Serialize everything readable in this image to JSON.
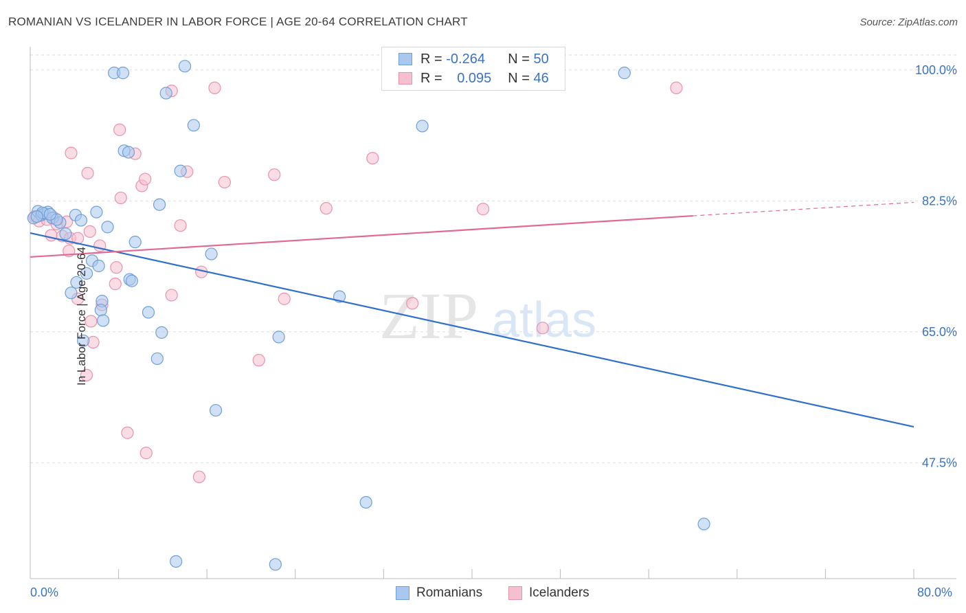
{
  "header": {
    "title": "ROMANIAN VS ICELANDER IN LABOR FORCE | AGE 20-64 CORRELATION CHART",
    "source": "Source: ZipAtlas.com"
  },
  "watermark": {
    "zip": "ZIP",
    "atlas": "atlas"
  },
  "legend": {
    "romanians": {
      "r_label": "R =",
      "r_value": "-0.264",
      "n_label": "N =",
      "n_value": "50"
    },
    "icelanders": {
      "r_label": "R =",
      "r_value": "0.095",
      "n_label": "N =",
      "n_value": "46"
    }
  },
  "bottom_legend": {
    "romanians": "Romanians",
    "icelanders": "Icelanders"
  },
  "colors": {
    "blue_fill": "#a9c8ef",
    "blue_stroke": "#6f9fd8",
    "blue_line": "#2e6fce",
    "pink_fill": "#f6bfd0",
    "pink_stroke": "#ea92ad",
    "pink_line": "#e16a91",
    "axis_text": "#3a73c4",
    "grid": "#dddddd"
  },
  "chart_data": {
    "type": "scatter",
    "title": "ROMANIAN VS ICELANDER IN LABOR FORCE | AGE 20-64 CORRELATION CHART",
    "xlabel": "",
    "ylabel": "In Labor Force | Age 20-64",
    "xlim": [
      0,
      80
    ],
    "ylim": [
      32,
      102
    ],
    "x_tick_labels": [
      "0.0%",
      "80.0%"
    ],
    "y_ticks": [
      47.5,
      65.0,
      82.5,
      100.0
    ],
    "y_tick_labels": [
      "47.5%",
      "65.0%",
      "82.5%",
      "100.0%"
    ],
    "series": [
      {
        "name": "Romanians",
        "color": "#a9c8ef",
        "r": -0.264,
        "n": 50,
        "trend": {
          "x": [
            0,
            80
          ],
          "y": [
            78.2,
            52.3
          ]
        },
        "points": [
          [
            0.3,
            80.2
          ],
          [
            0.7,
            81.1
          ],
          [
            1.0,
            80.6
          ],
          [
            1.3,
            80.8
          ],
          [
            1.6,
            81.0
          ],
          [
            2.0,
            80.2
          ],
          [
            2.7,
            79.6
          ],
          [
            3.2,
            78.1
          ],
          [
            4.1,
            80.6
          ],
          [
            4.6,
            79.9
          ],
          [
            6.0,
            81.0
          ],
          [
            5.6,
            74.5
          ],
          [
            6.2,
            73.8
          ],
          [
            5.1,
            72.8
          ],
          [
            4.2,
            71.6
          ],
          [
            3.7,
            70.2
          ],
          [
            6.5,
            69.1
          ],
          [
            6.4,
            67.9
          ],
          [
            6.6,
            66.5
          ],
          [
            7.0,
            79.0
          ],
          [
            9.5,
            77.0
          ],
          [
            9.0,
            72.0
          ],
          [
            9.2,
            71.8
          ],
          [
            10.7,
            67.6
          ],
          [
            11.9,
            64.9
          ],
          [
            11.5,
            61.4
          ],
          [
            4.8,
            63.8
          ],
          [
            7.6,
            99.6
          ],
          [
            8.4,
            99.6
          ],
          [
            12.3,
            96.9
          ],
          [
            14.8,
            92.6
          ],
          [
            13.6,
            86.5
          ],
          [
            8.5,
            89.2
          ],
          [
            8.9,
            89.0
          ],
          [
            11.7,
            82.0
          ],
          [
            16.4,
            75.4
          ],
          [
            16.8,
            54.5
          ],
          [
            22.5,
            64.3
          ],
          [
            28.0,
            69.7
          ],
          [
            35.5,
            92.5
          ],
          [
            30.4,
            42.2
          ],
          [
            53.8,
            99.6
          ],
          [
            13.2,
            34.3
          ],
          [
            22.2,
            33.9
          ],
          [
            61.0,
            39.3
          ],
          [
            14.0,
            100.5
          ],
          [
            2.4,
            80.0
          ],
          [
            1.1,
            80.9
          ],
          [
            0.6,
            80.4
          ],
          [
            1.8,
            80.7
          ]
        ]
      },
      {
        "name": "Icelanders",
        "color": "#f6bfd0",
        "r": 0.095,
        "n": 46,
        "trend": {
          "x": [
            0,
            60
          ],
          "y": [
            75.0,
            80.5
          ],
          "dashed_to": {
            "x": 80,
            "y": 82.3
          }
        },
        "points": [
          [
            0.4,
            80.4
          ],
          [
            0.8,
            79.8
          ],
          [
            1.5,
            80.0
          ],
          [
            1.9,
            77.9
          ],
          [
            2.4,
            79.4
          ],
          [
            2.9,
            77.8
          ],
          [
            3.3,
            79.7
          ],
          [
            3.6,
            77.5
          ],
          [
            4.3,
            77.5
          ],
          [
            3.5,
            75.8
          ],
          [
            4.3,
            69.4
          ],
          [
            5.4,
            78.4
          ],
          [
            6.5,
            68.6
          ],
          [
            5.5,
            66.4
          ],
          [
            5.7,
            63.6
          ],
          [
            5.1,
            59.2
          ],
          [
            6.3,
            76.5
          ],
          [
            7.8,
            73.6
          ],
          [
            7.7,
            71.4
          ],
          [
            8.2,
            82.9
          ],
          [
            8.1,
            92.0
          ],
          [
            9.5,
            88.8
          ],
          [
            10.1,
            84.5
          ],
          [
            10.4,
            85.4
          ],
          [
            5.2,
            86.2
          ],
          [
            3.7,
            88.9
          ],
          [
            12.8,
            97.2
          ],
          [
            16.7,
            97.6
          ],
          [
            14.2,
            86.4
          ],
          [
            17.6,
            85.0
          ],
          [
            13.6,
            79.2
          ],
          [
            15.5,
            73.0
          ],
          [
            12.8,
            69.9
          ],
          [
            23.0,
            69.4
          ],
          [
            22.1,
            86.0
          ],
          [
            26.8,
            81.5
          ],
          [
            31.0,
            88.2
          ],
          [
            34.6,
            68.8
          ],
          [
            41.0,
            81.4
          ],
          [
            46.4,
            65.5
          ],
          [
            58.5,
            97.6
          ],
          [
            20.7,
            61.2
          ],
          [
            8.8,
            51.5
          ],
          [
            10.5,
            48.8
          ],
          [
            15.3,
            45.6
          ],
          [
            2.1,
            80.3
          ]
        ]
      }
    ]
  }
}
